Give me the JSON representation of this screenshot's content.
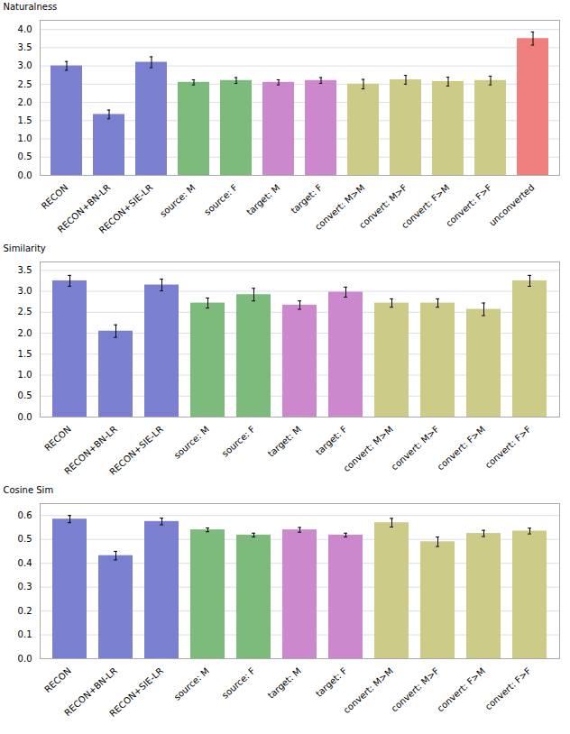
{
  "chart_data": [
    {
      "type": "bar",
      "categories": [
        "RECON",
        "RECON+BN-LR",
        "RECON+SIE-LR",
        "source: M",
        "source: F",
        "target: M",
        "target: F",
        "convert: M>M",
        "convert: M>F",
        "convert: F>M",
        "convert: F>F",
        "unconverted"
      ],
      "values": [
        3.0,
        1.67,
        3.1,
        2.55,
        2.6,
        2.55,
        2.6,
        2.5,
        2.62,
        2.57,
        2.6,
        3.75
      ],
      "errors": [
        0.12,
        0.12,
        0.15,
        0.07,
        0.08,
        0.07,
        0.08,
        0.13,
        0.12,
        0.12,
        0.12,
        0.18
      ],
      "colors": [
        "#7b7fcf",
        "#7b7fcf",
        "#7b7fcf",
        "#7dbb7d",
        "#7dbb7d",
        "#cc88cc",
        "#cc88cc",
        "#cccc88",
        "#cccc88",
        "#cccc88",
        "#cccc88",
        "#f08080"
      ],
      "ylabel": "Naturalness",
      "ylim": [
        0.0,
        4.25
      ],
      "yticks": [
        {
          "value": 0,
          "label": "0.0"
        },
        0.5,
        {
          "value": 1,
          "label": "1.0"
        },
        1.5,
        {
          "value": 2,
          "label": "2.0"
        },
        2.5,
        {
          "value": 3,
          "label": "3.0"
        },
        3.5,
        {
          "value": 4,
          "label": "4.0"
        }
      ],
      "grid": true
    },
    {
      "type": "bar",
      "categories": [
        "RECON",
        "RECON+BN-LR",
        "RECON+SIE-LR",
        "source: M",
        "source: F",
        "target: M",
        "target: F",
        "convert: M>M",
        "convert: M>F",
        "convert: F>M",
        "convert: F>F"
      ],
      "values": [
        3.25,
        2.05,
        3.15,
        2.72,
        2.92,
        2.67,
        2.98,
        2.72,
        2.72,
        2.57,
        3.25
      ],
      "errors": [
        0.13,
        0.15,
        0.14,
        0.12,
        0.15,
        0.1,
        0.12,
        0.1,
        0.1,
        0.15,
        0.13
      ],
      "colors": [
        "#7b7fcf",
        "#7b7fcf",
        "#7b7fcf",
        "#7dbb7d",
        "#7dbb7d",
        "#cc88cc",
        "#cc88cc",
        "#cccc88",
        "#cccc88",
        "#cccc88",
        "#cccc88"
      ],
      "ylabel": "Similarity",
      "ylim": [
        0.0,
        3.7
      ],
      "yticks": [
        {
          "value": 0,
          "label": "0.0"
        },
        0.5,
        {
          "value": 1,
          "label": "1.0"
        },
        1.5,
        {
          "value": 2,
          "label": "2.0"
        },
        2.5,
        {
          "value": 3,
          "label": "3.0"
        },
        3.5
      ],
      "grid": true
    },
    {
      "type": "bar",
      "categories": [
        "RECON",
        "RECON+BN-LR",
        "RECON+SIE-LR",
        "source: M",
        "source: F",
        "target: M",
        "target: F",
        "convert: M>M",
        "convert: M>F",
        "convert: F>M",
        "convert: F>F"
      ],
      "values": [
        0.585,
        0.432,
        0.575,
        0.54,
        0.518,
        0.54,
        0.518,
        0.57,
        0.49,
        0.525,
        0.535
      ],
      "errors": [
        0.015,
        0.018,
        0.014,
        0.008,
        0.008,
        0.01,
        0.008,
        0.018,
        0.02,
        0.013,
        0.012
      ],
      "colors": [
        "#7b7fcf",
        "#7b7fcf",
        "#7b7fcf",
        "#7dbb7d",
        "#7dbb7d",
        "#cc88cc",
        "#cc88cc",
        "#cccc88",
        "#cccc88",
        "#cccc88",
        "#cccc88"
      ],
      "ylabel": "Cosine Sim",
      "ylim": [
        0.0,
        0.65
      ],
      "yticks": [
        {
          "value": 0,
          "label": "0.0"
        },
        0.1,
        0.2,
        0.3,
        0.4,
        0.5,
        0.6
      ],
      "grid": true
    }
  ]
}
